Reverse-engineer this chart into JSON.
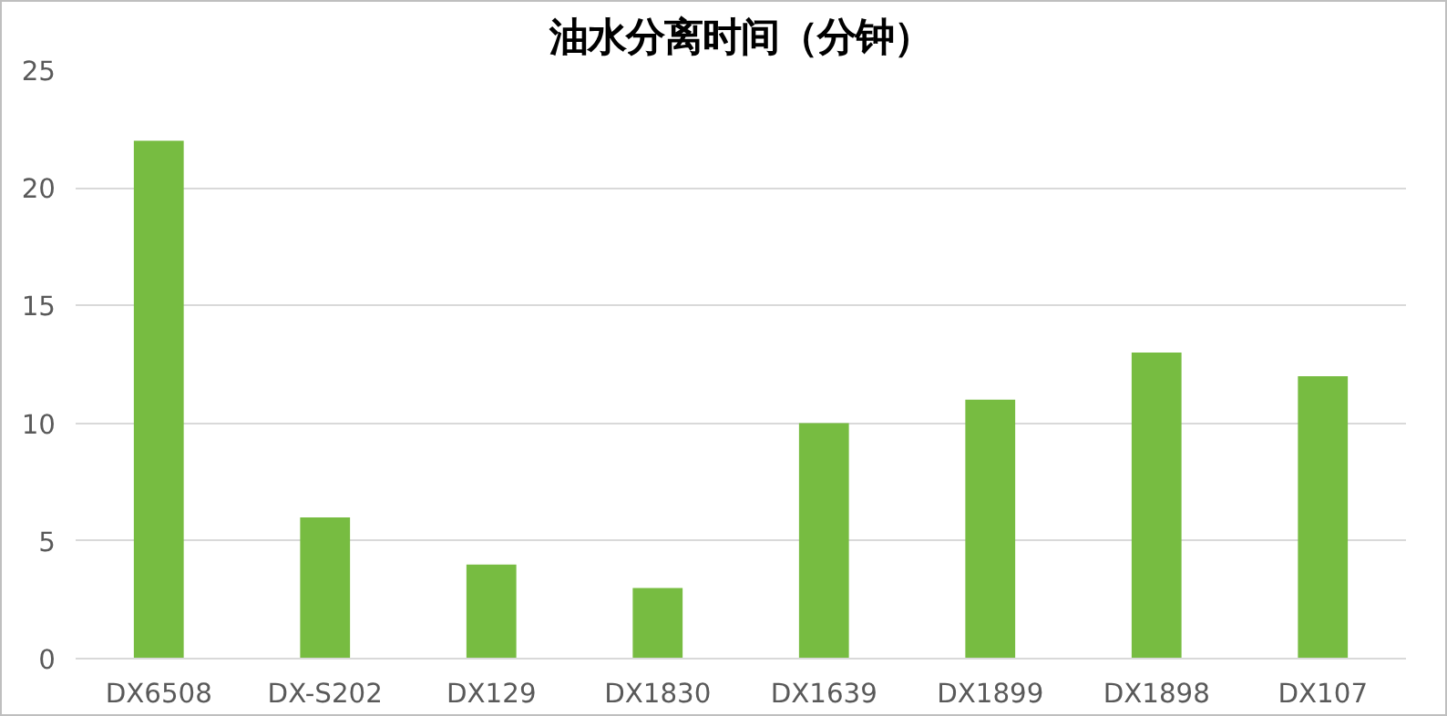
{
  "chart_data": {
    "type": "bar",
    "title": "油水分离时间（分钟）",
    "categories": [
      "DX6508",
      "DX-S202",
      "DX129",
      "DX1830",
      "DX1639",
      "DX1899",
      "DX1898",
      "DX107"
    ],
    "values": [
      22,
      6,
      4,
      3,
      10,
      11,
      13,
      12
    ],
    "color": "#77bc41",
    "ylim": [
      0,
      25
    ],
    "yticks": [
      0,
      5,
      10,
      15,
      20,
      25
    ],
    "grid": "y"
  }
}
